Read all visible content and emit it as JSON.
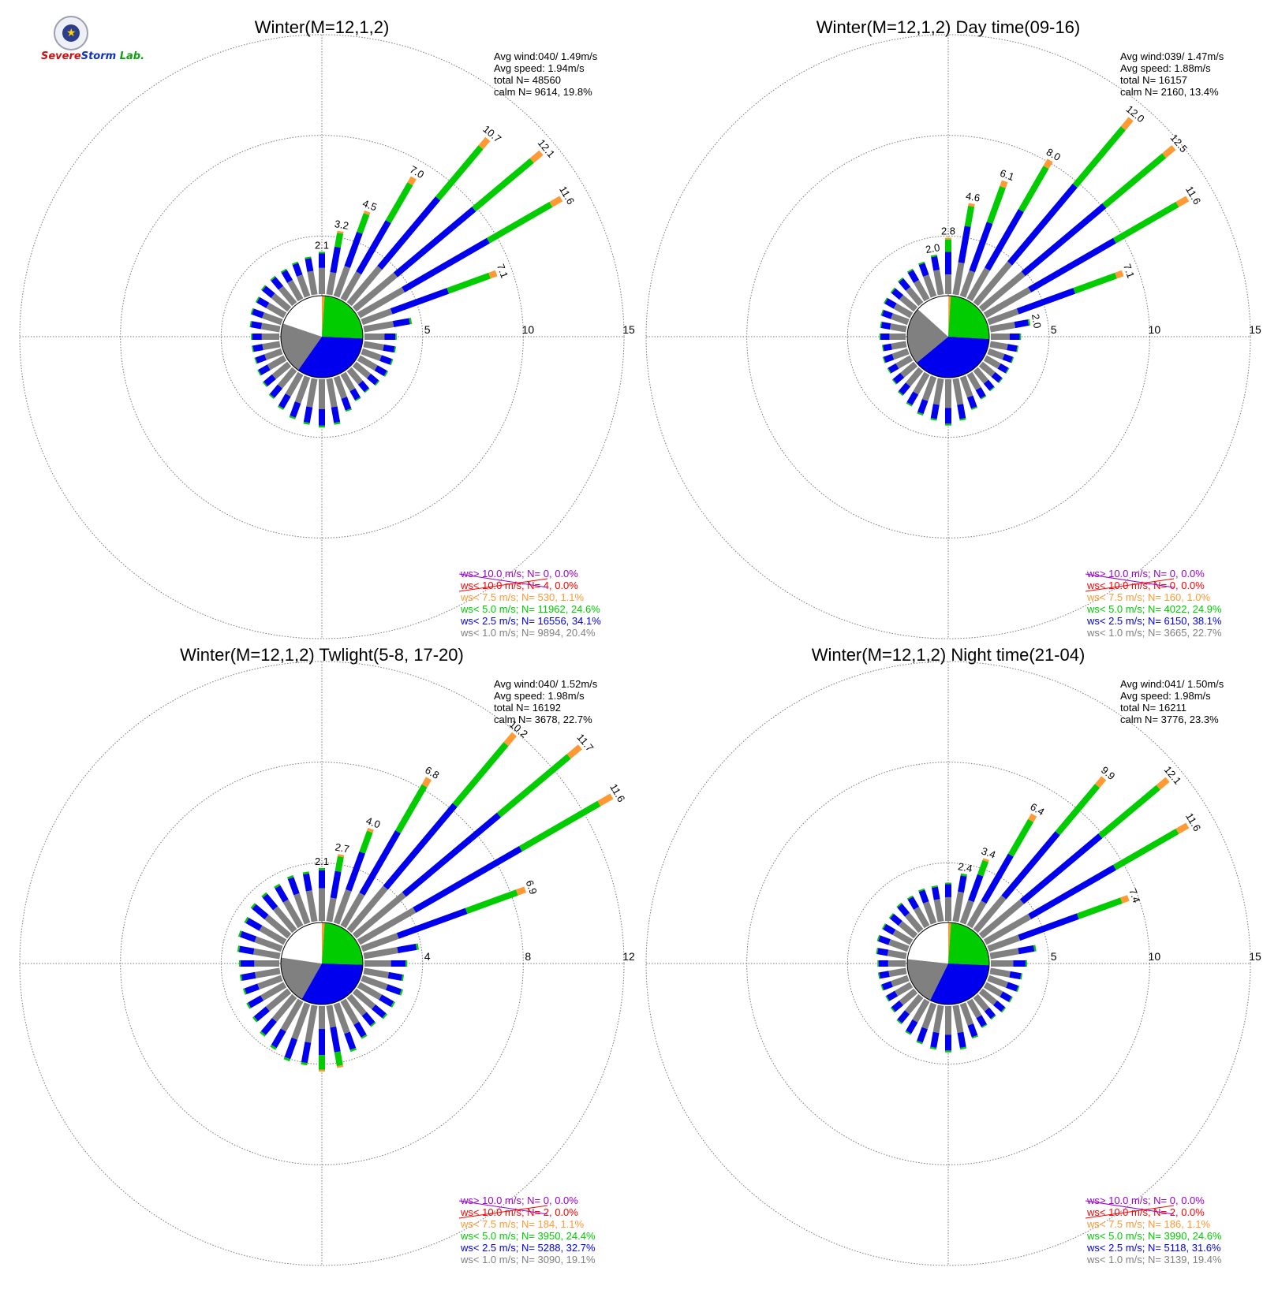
{
  "logo": {
    "text_severe": "Severe",
    "text_storm": "Storm",
    "text_lab": "Lab.",
    "colors": {
      "severe": "#d01010",
      "storm": "#1030c0",
      "lab": "#10a010"
    }
  },
  "chart_data": [
    {
      "type": "polar-bar",
      "title": "Winter(M=12,1,2)",
      "rmax": 15,
      "ring_labels": [
        "5",
        "10",
        "15"
      ],
      "directions_deg": [
        0,
        10,
        20,
        30,
        40,
        50,
        60,
        70,
        80,
        90,
        100,
        110,
        120,
        130,
        140,
        150,
        160,
        170,
        180,
        190,
        200,
        210,
        220,
        230,
        240,
        250,
        260,
        270,
        280,
        290,
        300,
        310,
        320,
        330,
        340,
        350
      ],
      "totals": [
        2.1,
        3.2,
        4.5,
        7.0,
        10.7,
        12.1,
        11.6,
        7.1,
        2.4,
        1.6,
        1.6,
        1.6,
        1.6,
        1.5,
        1.4,
        1.5,
        1.8,
        2.3,
        2.4,
        2.3,
        2.2,
        2.0,
        1.8,
        1.6,
        1.5,
        1.4,
        1.4,
        1.4,
        1.5,
        1.6,
        1.6,
        1.7,
        1.7,
        1.7,
        1.8,
        1.9
      ],
      "bar_labels": {
        "0": "2.1",
        "10": "3.2",
        "20": "4.5",
        "30": "7.0",
        "40": "10.7",
        "50": "12.1",
        "60": "11.6",
        "70": "7.1"
      },
      "calm_pie_pct": {
        "ws<1.0": 20.4,
        "ws<2.5": 34.1,
        "ws<5.0": 24.6,
        "ws<7.5": 1.1,
        "ws<10.0": 0.0,
        "calm": 19.8
      },
      "stats": [
        "Avg wind:040/ 1.49m/s",
        "Avg speed: 1.94m/s",
        "total N=      48560",
        "calm N=   9614,  19.8%"
      ],
      "legend": [
        "ws> 10.0 m/s; N=      0,  0.0%",
        "ws< 10.0 m/s; N=      4,  0.0%",
        "ws<  7.5 m/s; N=    530,  1.1%",
        "ws<  5.0 m/s; N= 11962, 24.6%",
        "ws<  2.5 m/s; N= 16556, 34.1%",
        "ws<  1.0 m/s; N=   9894, 20.4%"
      ]
    },
    {
      "type": "polar-bar",
      "title": "Winter(M=12,1,2) Day time(09-16)",
      "rmax": 15,
      "ring_labels": [
        "5",
        "10",
        "15"
      ],
      "directions_deg": [
        0,
        10,
        20,
        30,
        40,
        50,
        60,
        70,
        80,
        90,
        100,
        110,
        120,
        130,
        140,
        150,
        160,
        170,
        180,
        190,
        200,
        210,
        220,
        230,
        240,
        250,
        260,
        270,
        280,
        290,
        300,
        310,
        320,
        330,
        340,
        350
      ],
      "totals": [
        2.8,
        4.6,
        6.1,
        8.0,
        12.0,
        12.5,
        11.6,
        7.1,
        2.0,
        1.5,
        1.4,
        1.3,
        1.3,
        1.3,
        1.3,
        1.4,
        1.7,
        2.1,
        2.3,
        2.1,
        2.0,
        1.8,
        1.6,
        1.4,
        1.3,
        1.3,
        1.2,
        1.3,
        1.3,
        1.4,
        1.5,
        1.5,
        1.6,
        1.7,
        1.8,
        2.0
      ],
      "bar_labels": {
        "350": "2.0",
        "0": "2.8",
        "10": "4.6",
        "20": "6.1",
        "30": "8.0",
        "40": "12.0",
        "50": "12.5",
        "60": "11.6",
        "70": "7.1",
        "80": "2.0"
      },
      "calm_pie_pct": {
        "ws<1.0": 22.7,
        "ws<2.5": 38.1,
        "ws<5.0": 24.9,
        "ws<7.5": 1.0,
        "ws<10.0": 0.0,
        "calm": 13.4
      },
      "stats": [
        "Avg wind:039/ 1.47m/s",
        "Avg speed: 1.88m/s",
        "total N=      16157",
        "calm N=   2160,  13.4%"
      ],
      "legend": [
        "ws> 10.0 m/s; N=      0,  0.0%",
        "ws< 10.0 m/s; N=      0,  0.0%",
        "ws<  7.5 m/s; N=    160,  1.0%",
        "ws<  5.0 m/s; N=   4022, 24.9%",
        "ws<  2.5 m/s; N=   6150, 38.1%",
        "ws<  1.0 m/s; N=   3665, 22.7%"
      ]
    },
    {
      "type": "polar-bar",
      "title": "Winter(M=12,1,2) Twlight(5-8, 17-20)",
      "rmax": 12,
      "ring_labels": [
        "4",
        "8",
        "12"
      ],
      "directions_deg": [
        0,
        10,
        20,
        30,
        40,
        50,
        60,
        70,
        80,
        90,
        100,
        110,
        120,
        130,
        140,
        150,
        160,
        170,
        180,
        190,
        200,
        210,
        220,
        230,
        240,
        250,
        260,
        270,
        280,
        290,
        300,
        310,
        320,
        330,
        340,
        350
      ],
      "totals": [
        2.1,
        2.7,
        4.0,
        6.8,
        10.2,
        11.7,
        11.6,
        6.9,
        2.2,
        1.7,
        1.6,
        1.7,
        1.6,
        1.6,
        1.5,
        1.7,
        2.0,
        2.5,
        2.6,
        2.4,
        2.4,
        2.2,
        2.0,
        1.8,
        1.7,
        1.6,
        1.6,
        1.6,
        1.7,
        1.8,
        1.8,
        1.9,
        1.9,
        1.9,
        2.0,
        2.0
      ],
      "bar_labels": {
        "0": "2.1",
        "10": "2.7",
        "20": "4.0",
        "30": "6.8",
        "40": "10.2",
        "50": "11.7",
        "60": "11.6",
        "70": "6.9"
      },
      "calm_pie_pct": {
        "ws<1.0": 19.1,
        "ws<2.5": 32.7,
        "ws<5.0": 24.4,
        "ws<7.5": 1.1,
        "ws<10.0": 0.0,
        "calm": 22.7
      },
      "stats": [
        "Avg wind:040/ 1.52m/s",
        "Avg speed: 1.98m/s",
        "total N=      16192",
        "calm N=   3678,  22.7%"
      ],
      "legend": [
        "ws> 10.0 m/s; N=      0,  0.0%",
        "ws< 10.0 m/s; N=      2,  0.0%",
        "ws<  7.5 m/s; N=    184,  1.1%",
        "ws<  5.0 m/s; N=   3950, 24.4%",
        "ws<  2.5 m/s; N=   5288, 32.7%",
        "ws<  1.0 m/s; N=   3090, 19.1%"
      ]
    },
    {
      "type": "polar-bar",
      "title": "Winter(M=12,1,2) Night time(21-04)",
      "rmax": 15,
      "ring_labels": [
        "5",
        "10",
        "15"
      ],
      "directions_deg": [
        0,
        10,
        20,
        30,
        40,
        50,
        60,
        70,
        80,
        90,
        100,
        110,
        120,
        130,
        140,
        150,
        160,
        170,
        180,
        190,
        200,
        210,
        220,
        230,
        240,
        250,
        260,
        270,
        280,
        290,
        300,
        310,
        320,
        330,
        340,
        350
      ],
      "totals": [
        1.9,
        2.4,
        3.4,
        6.4,
        9.9,
        12.1,
        11.6,
        7.4,
        2.3,
        1.8,
        1.6,
        1.6,
        1.5,
        1.5,
        1.4,
        1.5,
        1.8,
        2.2,
        2.3,
        2.2,
        2.1,
        1.9,
        1.7,
        1.5,
        1.4,
        1.4,
        1.4,
        1.4,
        1.5,
        1.6,
        1.6,
        1.6,
        1.7,
        1.7,
        1.8,
        1.8
      ],
      "bar_labels": {
        "10": "2.4",
        "20": "3.4",
        "30": "6.4",
        "40": "9.9",
        "50": "12.1",
        "60": "11.6",
        "70": "7.4"
      },
      "calm_pie_pct": {
        "ws<1.0": 19.4,
        "ws<2.5": 31.6,
        "ws<5.0": 24.6,
        "ws<7.5": 1.1,
        "ws<10.0": 0.0,
        "calm": 23.3
      },
      "stats": [
        "Avg wind:041/ 1.50m/s",
        "Avg speed: 1.98m/s",
        "total N=      16211",
        "calm N=   3776,  23.3%"
      ],
      "legend": [
        "ws> 10.0 m/s; N=      0,  0.0%",
        "ws< 10.0 m/s; N=      2,  0.0%",
        "ws<  7.5 m/s; N=    186,  1.1%",
        "ws<  5.0 m/s; N=   3990, 24.6%",
        "ws<  2.5 m/s; N=   5118, 31.6%",
        "ws<  1.0 m/s; N=   3139, 19.4%"
      ]
    }
  ],
  "colors": {
    "gt10": "#9900cc",
    "lt10": "#ff0000",
    "lt7_5": "#ff9933",
    "lt5": "#00cc00",
    "lt2_5": "#0000ee",
    "lt1": "#808080",
    "grid": "#777777"
  }
}
